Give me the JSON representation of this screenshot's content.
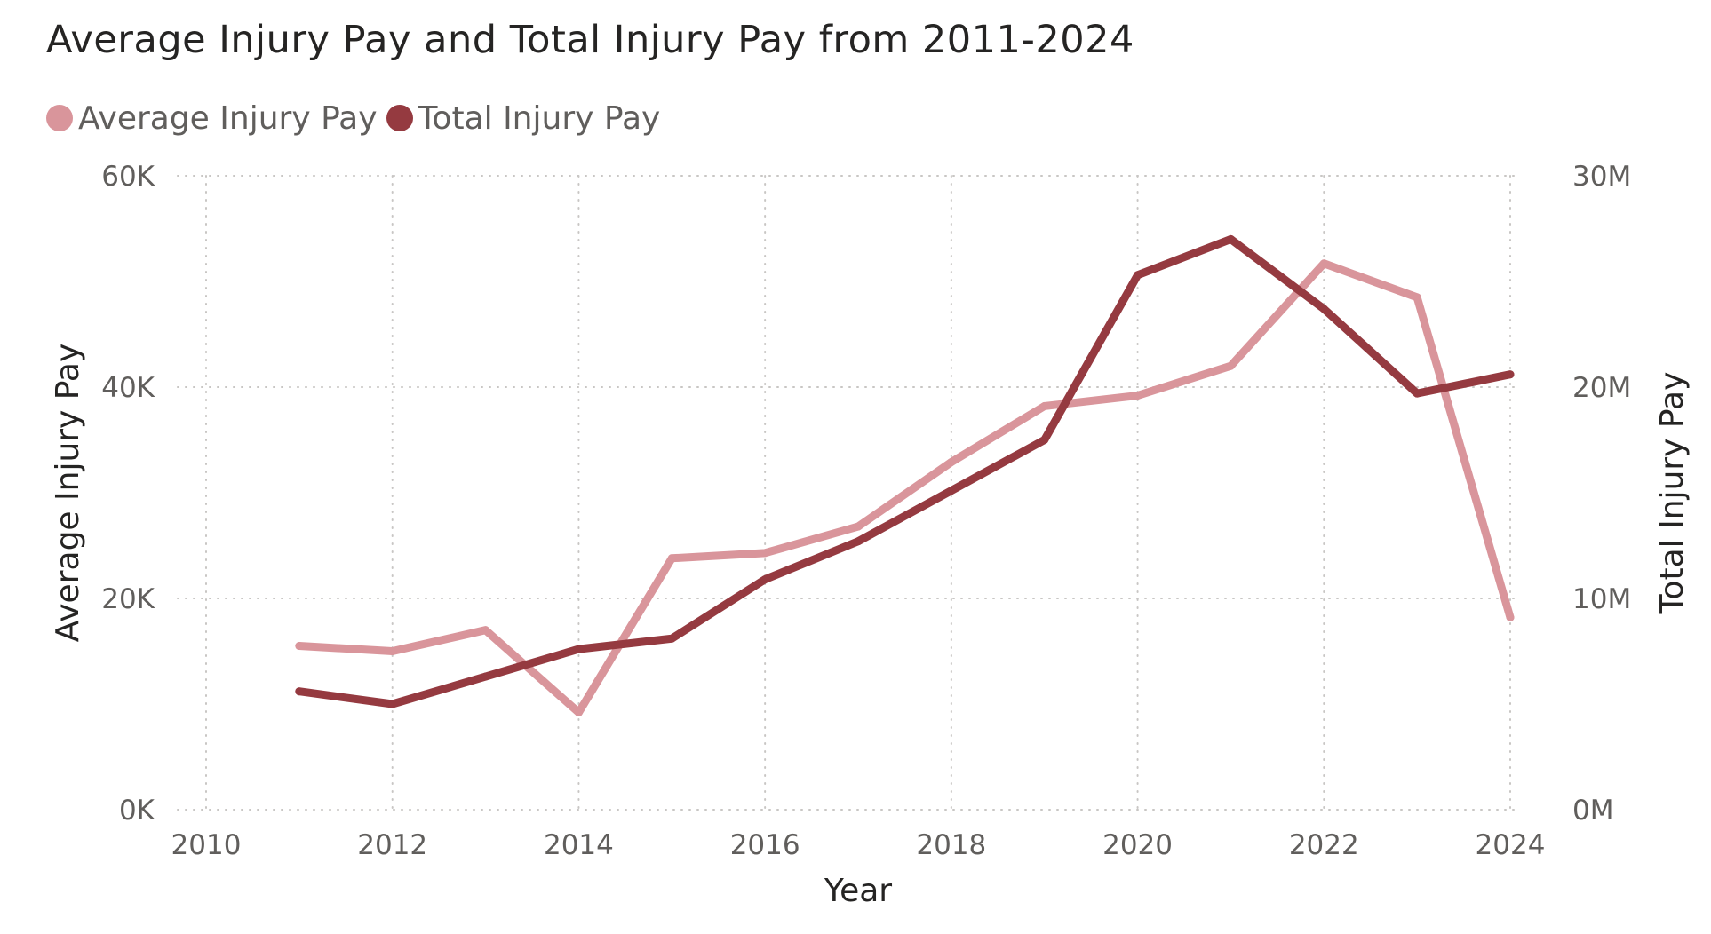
{
  "chart_data": {
    "type": "line",
    "title": "Average Injury Pay and Total Injury Pay from 2011-2024",
    "xlabel": "Year",
    "ylabel_left": "Average Injury Pay",
    "ylabel_right": "Total Injury Pay",
    "x_ticks": [
      "2010",
      "2012",
      "2014",
      "2016",
      "2018",
      "2020",
      "2022",
      "2024"
    ],
    "x_tick_values": [
      2010,
      2012,
      2014,
      2016,
      2018,
      2020,
      2022,
      2024
    ],
    "xlim": [
      2010,
      2024
    ],
    "y_left_ticks": [
      "0K",
      "20K",
      "40K",
      "60K"
    ],
    "y_left_tick_values": [
      0,
      20000,
      40000,
      60000
    ],
    "ylim_left": [
      0,
      60000
    ],
    "y_right_ticks": [
      "0M",
      "10M",
      "20M",
      "30M"
    ],
    "y_right_tick_values": [
      0,
      10000000,
      20000000,
      30000000
    ],
    "ylim_right": [
      0,
      30000000
    ],
    "grid": true,
    "legend_position": "top-left",
    "x": [
      2011,
      2012,
      2013,
      2014,
      2015,
      2016,
      2017,
      2018,
      2019,
      2020,
      2021,
      2022,
      2023,
      2024
    ],
    "series": [
      {
        "name": "Average Injury Pay",
        "axis": "left",
        "color": "#d9959b",
        "values": [
          15500,
          15000,
          17000,
          9200,
          23800,
          24300,
          26800,
          32900,
          38200,
          39200,
          42000,
          51700,
          48500,
          18200
        ]
      },
      {
        "name": "Total Injury Pay",
        "axis": "right",
        "color": "#953a40",
        "values": [
          5600000,
          5000000,
          6300000,
          7600000,
          8100000,
          10900000,
          12700000,
          15100000,
          17500000,
          25300000,
          27000000,
          23700000,
          19700000,
          20600000
        ]
      }
    ]
  }
}
